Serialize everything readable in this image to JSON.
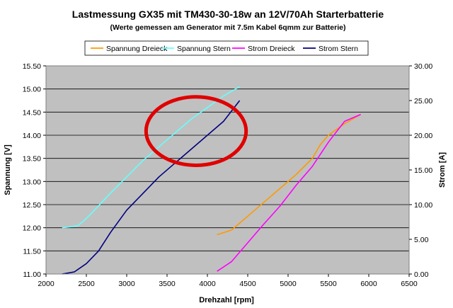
{
  "chart_data": {
    "type": "line",
    "title": "Lastmessung GX35 mit TM430-30-18w an 12V/70Ah Starterbatterie",
    "subtitle": "(Werte gemessen am Generator mit 7.5m Kabel 6qmm zur Batterie)",
    "xlabel": "Drehzahl [rpm]",
    "ylabel": "Spannung [V]",
    "y2label": "Strom [A]",
    "xlim": [
      2000,
      6500
    ],
    "ylim": [
      11.0,
      15.5
    ],
    "y2lim": [
      0,
      30
    ],
    "x_ticks": [
      "2000",
      "2500",
      "3000",
      "3500",
      "4000",
      "4500",
      "5000",
      "5500",
      "6000",
      "6500"
    ],
    "y_ticks": [
      "11.00",
      "11.50",
      "12.00",
      "12.50",
      "13.00",
      "13.50",
      "14.00",
      "14.50",
      "15.00",
      "15.50"
    ],
    "y2_ticks": [
      "0.00",
      "5.00",
      "10.00",
      "15.00",
      "20.00",
      "25.00",
      "30.00"
    ],
    "grid": "horizontal",
    "plot_background": "#c0c0c0",
    "legend_position": "top",
    "series": [
      {
        "name": "Spannung Dreieck",
        "axis": "left",
        "color": "#ff9900",
        "x": [
          4120,
          4300,
          4500,
          4700,
          4900,
          5100,
          5300,
          5400,
          5500,
          5700,
          5900
        ],
        "y": [
          11.85,
          11.95,
          12.25,
          12.55,
          12.85,
          13.15,
          13.5,
          13.8,
          14.0,
          14.25,
          14.45
        ]
      },
      {
        "name": "Spannung Stern",
        "axis": "left",
        "color": "#66ffff",
        "x": [
          2200,
          2300,
          2400,
          2500,
          2600,
          2800,
          3000,
          3200,
          3400,
          3600,
          3800,
          4000,
          4200,
          4400
        ],
        "y": [
          12.0,
          12.02,
          12.05,
          12.2,
          12.38,
          12.75,
          13.1,
          13.45,
          13.75,
          14.05,
          14.35,
          14.6,
          14.85,
          15.05
        ]
      },
      {
        "name": "Strom Dreieck",
        "axis": "right",
        "color": "#ff00ff",
        "x": [
          4120,
          4300,
          4500,
          4700,
          4900,
          5100,
          5300,
          5500,
          5700,
          5900
        ],
        "y": [
          0.4,
          1.8,
          4.5,
          7.2,
          9.8,
          12.8,
          15.5,
          19.0,
          22.0,
          23.0
        ]
      },
      {
        "name": "Strom Stern",
        "axis": "right",
        "color": "#000080",
        "x": [
          2200,
          2350,
          2500,
          2650,
          2800,
          3000,
          3200,
          3400,
          3600,
          3800,
          4000,
          4200,
          4400
        ],
        "y": [
          0.0,
          0.3,
          1.5,
          3.3,
          6.0,
          9.2,
          11.6,
          14.0,
          16.0,
          18.0,
          20.0,
          22.0,
          25.0
        ]
      }
    ],
    "annotations": [
      {
        "type": "ellipse",
        "color": "#e00000",
        "cx": 3860,
        "cy": 14.09,
        "rx": 620,
        "ry": 0.74
      }
    ]
  }
}
